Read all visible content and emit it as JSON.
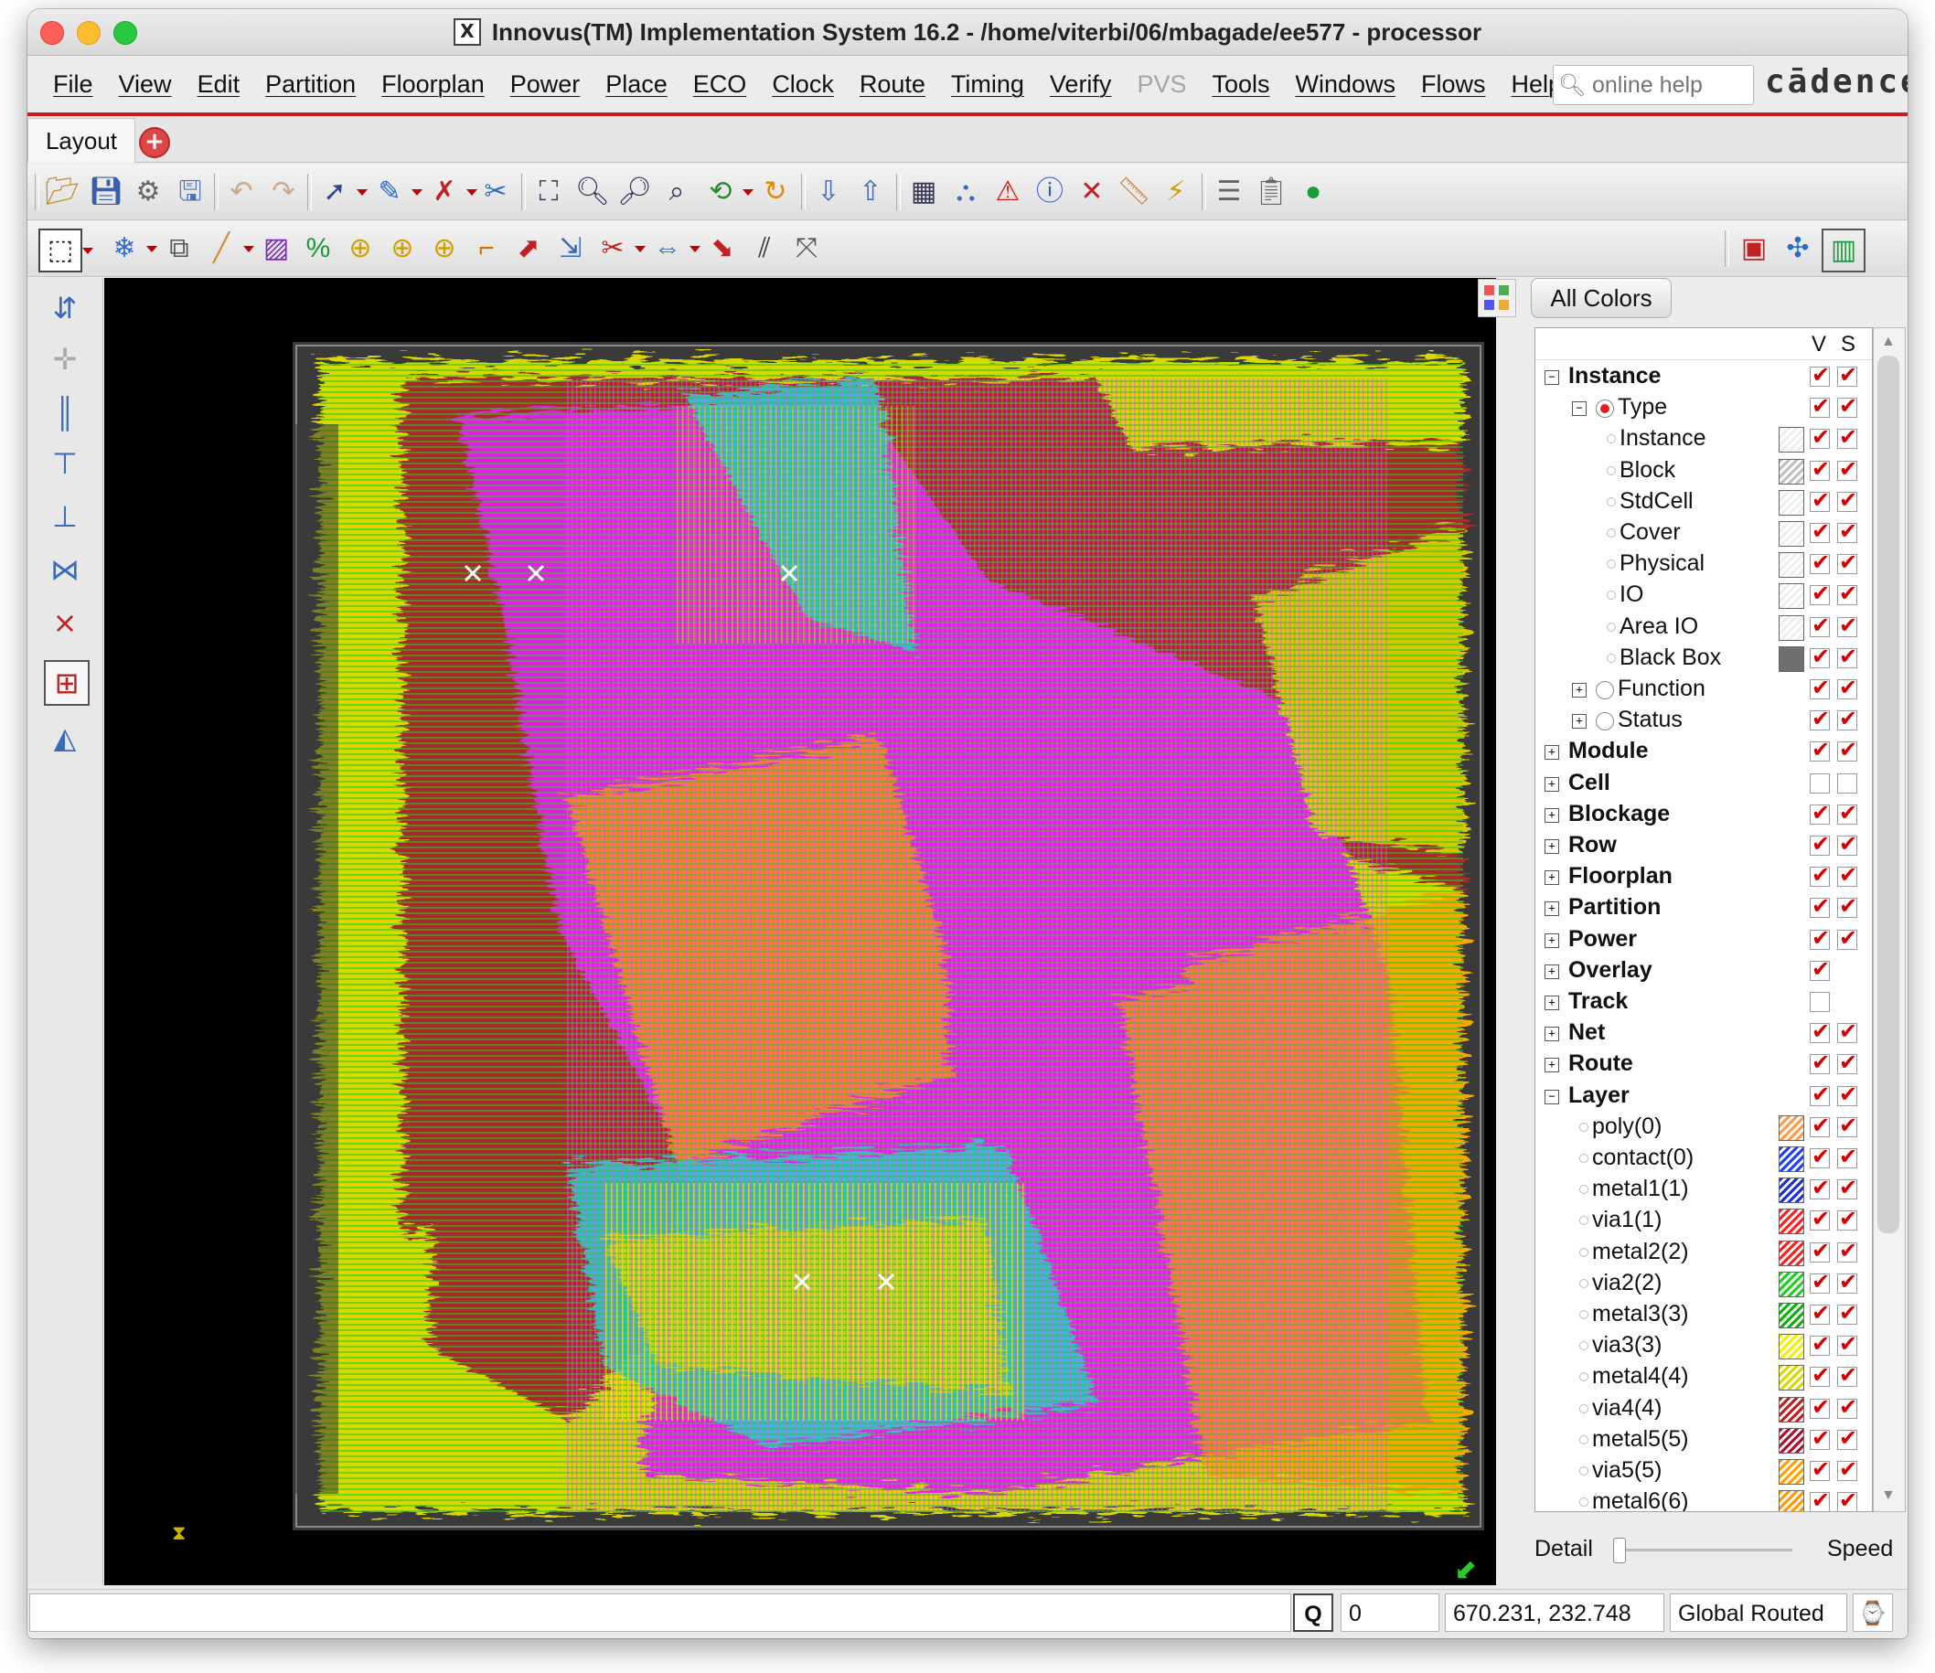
{
  "window": {
    "title": "Innovus(TM) Implementation System 16.2 - /home/viterbi/06/mbagade/ee577 - processor",
    "x_logo": "X"
  },
  "menu": {
    "items": [
      "File",
      "View",
      "Edit",
      "Partition",
      "Floorplan",
      "Power",
      "Place",
      "ECO",
      "Clock",
      "Route",
      "Timing",
      "Verify",
      "PVS",
      "Tools",
      "Windows",
      "Flows",
      "Help"
    ],
    "disabled": [
      "PVS"
    ],
    "search_placeholder": "online help",
    "brand": "cādence"
  },
  "tabs": {
    "active": "Layout"
  },
  "right_panel": {
    "all_colors_button": "All Colors",
    "col_v": "V",
    "col_s": "S",
    "tree": [
      {
        "label": "Instance",
        "level": 0,
        "bold": true,
        "expander": "minus",
        "v": true,
        "s": true
      },
      {
        "label": "Type",
        "level": 1,
        "expander": "minus",
        "radio": "on",
        "v": true,
        "s": true
      },
      {
        "label": "Instance",
        "level": 2,
        "swatch": "#efefef",
        "v": true,
        "s": true
      },
      {
        "label": "Block",
        "level": 2,
        "swatch": "#bfbfbf",
        "v": true,
        "s": true
      },
      {
        "label": "StdCell",
        "level": 2,
        "swatch": "#efefef",
        "v": true,
        "s": true
      },
      {
        "label": "Cover",
        "level": 2,
        "swatch": "#efefef",
        "v": true,
        "s": true
      },
      {
        "label": "Physical",
        "level": 2,
        "swatch": "#efefef",
        "v": true,
        "s": true
      },
      {
        "label": "IO",
        "level": 2,
        "swatch": "#efefef",
        "v": true,
        "s": true
      },
      {
        "label": "Area IO",
        "level": 2,
        "swatch": "#efefef",
        "v": true,
        "s": true
      },
      {
        "label": "Black Box",
        "level": 2,
        "swatch": "#6e6e6e",
        "v": true,
        "s": true
      },
      {
        "label": "Function",
        "level": 1,
        "expander": "plus",
        "radio": "off",
        "v": true,
        "s": true
      },
      {
        "label": "Status",
        "level": 1,
        "expander": "plus",
        "radio": "off",
        "v": true,
        "s": true
      },
      {
        "label": "Module",
        "level": 0,
        "bold": true,
        "expander": "plus",
        "v": true,
        "s": true
      },
      {
        "label": "Cell",
        "level": 0,
        "bold": true,
        "expander": "plus",
        "v": false,
        "s": false
      },
      {
        "label": "Blockage",
        "level": 0,
        "bold": true,
        "expander": "plus",
        "v": true,
        "s": true
      },
      {
        "label": "Row",
        "level": 0,
        "bold": true,
        "expander": "plus",
        "v": true,
        "s": true
      },
      {
        "label": "Floorplan",
        "level": 0,
        "bold": true,
        "expander": "plus",
        "v": true,
        "s": true
      },
      {
        "label": "Partition",
        "level": 0,
        "bold": true,
        "expander": "plus",
        "v": true,
        "s": true
      },
      {
        "label": "Power",
        "level": 0,
        "bold": true,
        "expander": "plus",
        "v": true,
        "s": true
      },
      {
        "label": "Overlay",
        "level": 0,
        "bold": true,
        "expander": "plus",
        "v": true,
        "s": null
      },
      {
        "label": "Track",
        "level": 0,
        "bold": true,
        "expander": "plus",
        "v": false,
        "s": null
      },
      {
        "label": "Net",
        "level": 0,
        "bold": true,
        "expander": "plus",
        "v": true,
        "s": true
      },
      {
        "label": "Route",
        "level": 0,
        "bold": true,
        "expander": "plus",
        "v": true,
        "s": true
      },
      {
        "label": "Layer",
        "level": 0,
        "bold": true,
        "expander": "minus",
        "v": true,
        "s": true
      },
      {
        "label": "poly(0)",
        "level": 1,
        "swatch": "#ff9a4a",
        "v": true,
        "s": true
      },
      {
        "label": "contact(0)",
        "level": 1,
        "swatch": "#2040ff",
        "v": true,
        "s": true
      },
      {
        "label": "metal1(1)",
        "level": 1,
        "swatch": "#2030d0",
        "v": true,
        "s": true
      },
      {
        "label": "via1(1)",
        "level": 1,
        "swatch": "#ff2020",
        "v": true,
        "s": true
      },
      {
        "label": "metal2(2)",
        "level": 1,
        "swatch": "#ff2020",
        "v": true,
        "s": true
      },
      {
        "label": "via2(2)",
        "level": 1,
        "swatch": "#20d020",
        "v": true,
        "s": true
      },
      {
        "label": "metal3(3)",
        "level": 1,
        "swatch": "#10b010",
        "v": true,
        "s": true
      },
      {
        "label": "via3(3)",
        "level": 1,
        "swatch": "#f2f200",
        "v": true,
        "s": true
      },
      {
        "label": "metal4(4)",
        "level": 1,
        "swatch": "#d8d800",
        "v": true,
        "s": true
      },
      {
        "label": "via4(4)",
        "level": 1,
        "swatch": "#c02020",
        "v": true,
        "s": true
      },
      {
        "label": "metal5(5)",
        "level": 1,
        "swatch": "#b01030",
        "v": true,
        "s": true
      },
      {
        "label": "via5(5)",
        "level": 1,
        "swatch": "#ffa000",
        "v": true,
        "s": true
      },
      {
        "label": "metal6(6)",
        "level": 1,
        "swatch": "#ff9a00",
        "v": true,
        "s": true
      }
    ],
    "detail_label": "Detail",
    "speed_label": "Speed",
    "detail_level": 0
  },
  "status": {
    "q_label": "Q",
    "count": "0",
    "coords": "670.231, 232.748",
    "state": "Global Routed"
  },
  "colors": {
    "canvas": "#000000",
    "accent": "#d01b1b",
    "layout_colors": [
      "#a82a2a",
      "#d8d800",
      "#e020e0",
      "#ff9a00",
      "#20d0d0",
      "#20d020"
    ]
  }
}
